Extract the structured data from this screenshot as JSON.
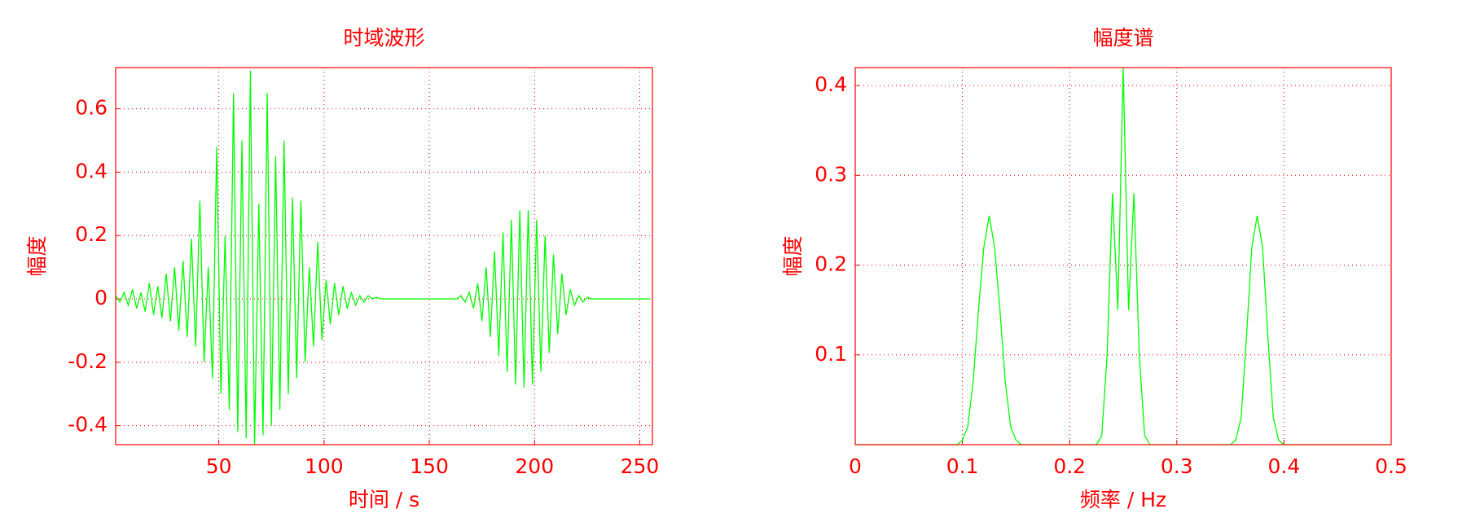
{
  "chart_data": [
    {
      "type": "line",
      "title": "时域波形",
      "xlabel": "时间 / s",
      "ylabel": "幅度",
      "xlim": [
        1,
        256
      ],
      "ylim": [
        -0.46,
        0.73
      ],
      "xticks": [
        50,
        100,
        150,
        200,
        250
      ],
      "yticks": [
        -0.4,
        -0.2,
        0,
        0.2,
        0.4,
        0.6
      ],
      "grid": true,
      "axis_color": "#ff0000",
      "x": [
        1,
        3,
        5,
        7,
        9,
        11,
        13,
        15,
        17,
        19,
        21,
        23,
        25,
        27,
        29,
        31,
        33,
        35,
        37,
        39,
        41,
        43,
        45,
        47,
        49,
        51,
        53,
        55,
        57,
        59,
        61,
        63,
        65,
        67,
        69,
        71,
        73,
        75,
        77,
        79,
        81,
        83,
        85,
        87,
        89,
        91,
        93,
        95,
        97,
        99,
        101,
        103,
        105,
        107,
        109,
        111,
        113,
        115,
        117,
        119,
        121,
        123,
        125,
        127,
        129,
        131,
        133,
        135,
        137,
        139,
        141,
        143,
        145,
        147,
        149,
        151,
        153,
        155,
        157,
        159,
        161,
        163,
        165,
        167,
        169,
        171,
        173,
        175,
        177,
        179,
        181,
        183,
        185,
        187,
        189,
        191,
        193,
        195,
        197,
        199,
        201,
        203,
        205,
        207,
        209,
        211,
        213,
        215,
        217,
        219,
        221,
        223,
        225,
        227,
        229,
        231,
        233,
        235,
        237,
        239,
        241,
        243,
        245,
        247,
        249,
        251,
        253,
        255
      ],
      "series": [
        {
          "color": "#00ff00",
          "values": [
            0.01,
            -0.01,
            0.02,
            -0.02,
            0.03,
            -0.03,
            0.02,
            -0.04,
            0.05,
            -0.05,
            0.04,
            -0.06,
            0.08,
            -0.07,
            0.1,
            -0.1,
            0.12,
            -0.12,
            0.19,
            -0.15,
            0.31,
            -0.2,
            0.1,
            -0.25,
            0.48,
            -0.3,
            0.2,
            -0.35,
            0.65,
            -0.42,
            0.5,
            -0.44,
            0.72,
            -0.46,
            0.3,
            -0.43,
            0.65,
            -0.4,
            0.45,
            -0.35,
            0.5,
            -0.3,
            0.32,
            -0.25,
            0.31,
            -0.2,
            0.1,
            -0.15,
            0.18,
            -0.13,
            0.06,
            -0.08,
            0.05,
            -0.05,
            0.04,
            -0.03,
            0.02,
            -0.02,
            0.01,
            -0.01,
            0.01,
            0,
            0.005,
            0,
            0,
            0,
            0,
            0,
            0,
            0,
            0,
            0,
            0,
            0,
            0,
            0,
            0,
            0,
            0,
            0,
            0,
            0,
            0.01,
            -0.01,
            0.02,
            -0.03,
            0.05,
            -0.07,
            0.1,
            -0.12,
            0.15,
            -0.18,
            0.21,
            -0.23,
            0.25,
            -0.27,
            0.28,
            -0.28,
            0.28,
            -0.27,
            0.25,
            -0.23,
            0.2,
            -0.17,
            0.14,
            -0.11,
            0.08,
            -0.05,
            0.03,
            -0.02,
            0.01,
            -0.01,
            0.005,
            0,
            0,
            0,
            0,
            0,
            0,
            0,
            0,
            0,
            0,
            0,
            0,
            0,
            0,
            0
          ]
        }
      ]
    },
    {
      "type": "line",
      "title": "幅度谱",
      "xlabel": "频率 / Hz",
      "ylabel": "幅度",
      "xlim": [
        0,
        0.5
      ],
      "ylim": [
        0,
        0.42
      ],
      "xticks": [
        0,
        0.1,
        0.2,
        0.3,
        0.4,
        0.5
      ],
      "yticks": [
        0.1,
        0.2,
        0.3,
        0.4
      ],
      "grid": true,
      "axis_color": "#ff0000",
      "x": [
        0,
        0.005,
        0.01,
        0.015,
        0.02,
        0.025,
        0.03,
        0.035,
        0.04,
        0.045,
        0.05,
        0.055,
        0.06,
        0.065,
        0.07,
        0.075,
        0.08,
        0.085,
        0.09,
        0.095,
        0.1,
        0.105,
        0.11,
        0.115,
        0.12,
        0.125,
        0.13,
        0.135,
        0.14,
        0.145,
        0.15,
        0.155,
        0.16,
        0.165,
        0.17,
        0.175,
        0.18,
        0.185,
        0.19,
        0.195,
        0.2,
        0.205,
        0.21,
        0.215,
        0.22,
        0.225,
        0.23,
        0.235,
        0.24,
        0.245,
        0.25,
        0.255,
        0.26,
        0.265,
        0.27,
        0.275,
        0.28,
        0.285,
        0.29,
        0.295,
        0.3,
        0.305,
        0.31,
        0.315,
        0.32,
        0.325,
        0.33,
        0.335,
        0.34,
        0.345,
        0.35,
        0.355,
        0.36,
        0.365,
        0.37,
        0.375,
        0.38,
        0.385,
        0.39,
        0.395,
        0.4,
        0.405,
        0.41,
        0.415,
        0.42,
        0.425,
        0.43,
        0.435,
        0.44,
        0.445,
        0.45,
        0.455,
        0.46,
        0.465,
        0.47,
        0.475,
        0.48,
        0.485,
        0.49,
        0.495,
        0.5
      ],
      "series": [
        {
          "color": "#00ff00",
          "values": [
            0,
            0,
            0,
            0,
            0,
            0,
            0,
            0,
            0,
            0,
            0,
            0,
            0,
            0,
            0,
            0,
            0,
            0,
            0,
            0,
            0.005,
            0.02,
            0.07,
            0.15,
            0.22,
            0.255,
            0.22,
            0.15,
            0.07,
            0.02,
            0.005,
            0,
            0,
            0,
            0,
            0,
            0,
            0,
            0,
            0,
            0,
            0,
            0,
            0,
            0,
            0,
            0.01,
            0.1,
            0.28,
            0.15,
            0.42,
            0.15,
            0.28,
            0.1,
            0.01,
            0,
            0,
            0,
            0,
            0,
            0,
            0,
            0,
            0,
            0,
            0,
            0,
            0,
            0,
            0,
            0,
            0.005,
            0.03,
            0.12,
            0.22,
            0.255,
            0.22,
            0.12,
            0.03,
            0.005,
            0,
            0,
            0,
            0,
            0,
            0,
            0,
            0,
            0,
            0,
            0,
            0,
            0,
            0,
            0,
            0,
            0,
            0,
            0,
            0,
            0
          ]
        }
      ]
    }
  ]
}
